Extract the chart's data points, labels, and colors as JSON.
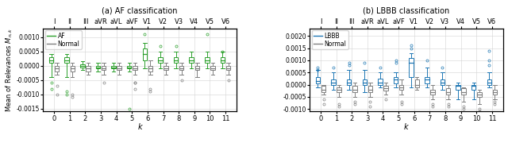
{
  "subplot_titles": [
    "(a) AF classification",
    "(b) LBBB classification"
  ],
  "ylabel": "Mean of Relevances $M_{n,k}$",
  "xlabel": "k",
  "top_labels": [
    "I",
    "II",
    "III",
    "aVR",
    "aVL",
    "aVF",
    "V1",
    "V2",
    "V3",
    "V4",
    "V5",
    "V6"
  ],
  "x_ticks": [
    0,
    1,
    2,
    3,
    4,
    5,
    6,
    7,
    8,
    9,
    10,
    11
  ],
  "af": {
    "color": "#2ca02c",
    "label": "AF",
    "ylim": [
      -0.0016,
      0.0013
    ],
    "yticks": [
      -0.0015,
      -0.001,
      -0.0005,
      0.0,
      0.0005,
      0.001
    ],
    "boxes": {
      "class": {
        "medians": [
          0.0002,
          0.0002,
          0.0,
          -5e-05,
          -5e-05,
          -5e-05,
          0.0004,
          0.0002,
          0.0002,
          0.0002,
          0.0002,
          0.0002
        ],
        "q1": [
          0.0001,
          0.0001,
          -5e-05,
          -0.0001,
          -0.0001,
          -0.0001,
          0.0002,
          0.0001,
          0.0001,
          0.0001,
          0.0001,
          0.0001
        ],
        "q3": [
          0.0003,
          0.0003,
          5e-05,
          0.0,
          0.0,
          0.0,
          0.0006,
          0.0003,
          0.0003,
          0.0003,
          0.0003,
          0.0003
        ],
        "whislo": [
          -0.0004,
          -0.0004,
          -0.00015,
          -0.0002,
          -0.0002,
          -0.0002,
          -0.0001,
          -0.0001,
          -0.0001,
          -0.0001,
          -0.0001,
          -0.0001
        ],
        "whishi": [
          0.0004,
          0.0004,
          0.00015,
          0.0001,
          0.0001,
          0.0001,
          0.0008,
          0.0005,
          0.0005,
          0.0005,
          0.0005,
          0.0005
        ],
        "fliers_y": [
          [
            -0.0008,
            -0.0006
          ],
          [
            -0.0009,
            -0.001
          ],
          [],
          [],
          [],
          [
            -0.0015
          ],
          [
            0.0011
          ],
          [
            0.0007
          ],
          [
            0.0007
          ],
          [],
          [
            0.0011
          ],
          [
            0.0005
          ]
        ]
      },
      "normal": {
        "medians": [
          -0.0001,
          -0.0001,
          -0.0001,
          -0.0001,
          -0.0001,
          -0.0001,
          -0.0001,
          -0.0001,
          -0.0001,
          -0.0001,
          -0.0001,
          -0.0001
        ],
        "q1": [
          -0.0002,
          -0.0002,
          -0.0002,
          -0.00015,
          -0.00015,
          -0.00015,
          -0.0002,
          -0.00015,
          -0.00015,
          -0.00015,
          -0.00015,
          -0.00015
        ],
        "q3": [
          0.0,
          0.0,
          0.0,
          0.0,
          0.0,
          0.0,
          0.0,
          0.0,
          0.0,
          0.0,
          0.0,
          0.0
        ],
        "whislo": [
          -0.0003,
          -0.0004,
          -0.0003,
          -0.0003,
          -0.0003,
          -0.0003,
          -0.0003,
          -0.0003,
          -0.0003,
          -0.0004,
          -0.0003,
          -0.0003
        ],
        "whishi": [
          0.0001,
          0.0001,
          0.0001,
          0.0001,
          0.0001,
          0.0001,
          0.0002,
          0.0001,
          0.0001,
          0.0001,
          0.0001,
          0.0001
        ],
        "fliers_y": [
          [
            -0.0007,
            -0.001
          ],
          [
            -0.001,
            -0.0011
          ],
          [],
          [
            -0.0006
          ],
          [],
          [
            -0.0006,
            -0.0006,
            -0.0008
          ],
          [
            -0.0008,
            -0.0009
          ],
          [],
          [
            -0.0005
          ],
          [],
          [],
          [
            -0.0005
          ]
        ]
      }
    }
  },
  "lbbb": {
    "color": "#1f77b4",
    "label": "LBBB",
    "ylim": [
      -0.0011,
      0.0023
    ],
    "yticks": [
      -0.001,
      -0.0005,
      0.0,
      0.0005,
      0.001,
      0.0015,
      0.002
    ],
    "boxes": {
      "class": {
        "medians": [
          0.00015,
          0.0001,
          0.0001,
          0.0001,
          0.0001,
          0.0002,
          0.0009,
          0.0002,
          0.0001,
          -5e-05,
          -5e-05,
          0.0001
        ],
        "q1": [
          5e-05,
          0.0,
          0.0,
          0.0,
          0.0,
          5e-05,
          0.0003,
          5e-05,
          0.0,
          -0.0002,
          -0.0002,
          0.0
        ],
        "q3": [
          0.0003,
          0.0002,
          0.0002,
          0.0002,
          0.00025,
          0.0003,
          0.0011,
          0.0003,
          0.0002,
          0.0,
          0.0,
          0.0002
        ],
        "whislo": [
          -0.0001,
          -0.0002,
          -0.0002,
          -0.0003,
          -0.0001,
          -0.0001,
          -0.0001,
          -0.0001,
          -0.0002,
          -0.0006,
          -0.0006,
          -0.0001
        ],
        "whishi": [
          0.0006,
          0.0005,
          0.0006,
          0.0006,
          0.0005,
          0.0005,
          0.0013,
          0.0007,
          0.0005,
          0.0001,
          0.0001,
          0.0005
        ],
        "fliers_y": [
          [
            0.0007,
            0.0006
          ],
          [
            0.0007
          ],
          [
            0.0008,
            0.0009
          ],
          [
            0.0009
          ],
          [
            0.0007
          ],
          [
            0.0009,
            0.001
          ],
          [
            0.0015,
            0.0016
          ],
          [
            0.001
          ],
          [
            0.0007
          ],
          [],
          [],
          [
            0.0008,
            0.001,
            0.0014
          ]
        ]
      },
      "normal": {
        "medians": [
          -0.0002,
          -0.0002,
          -0.0002,
          -0.0002,
          -0.00015,
          -0.0001,
          0.0,
          -0.0003,
          -0.0003,
          -0.0003,
          -0.0004,
          -0.0003
        ],
        "q1": [
          -0.0003,
          -0.0003,
          -0.0003,
          -0.0003,
          -0.00025,
          -0.0002,
          -0.0001,
          -0.0004,
          -0.0004,
          -0.0004,
          -0.0005,
          -0.0004
        ],
        "q3": [
          -5e-05,
          -0.0001,
          -5e-05,
          -5e-05,
          -5e-05,
          0.0,
          0.0002,
          -0.0002,
          -0.00015,
          -0.00015,
          -0.0003,
          -0.0002
        ],
        "whislo": [
          -0.0004,
          -0.0005,
          -0.0005,
          -0.0005,
          -0.0004,
          -0.0004,
          -0.0002,
          -0.0006,
          -0.0006,
          -0.0007,
          -0.0008,
          -0.0006
        ],
        "whishi": [
          0.0,
          0.0,
          0.0001,
          0.0001,
          0.0001,
          0.0002,
          0.0003,
          0.0,
          0.0,
          -0.0001,
          -0.0002,
          0.0
        ],
        "fliers_y": [
          [
            -0.0006,
            -0.0008
          ],
          [
            -0.0008,
            -0.0009
          ],
          [
            -0.0007,
            -0.0008
          ],
          [
            -0.0007,
            -0.0009
          ],
          [
            -0.0006
          ],
          [
            -0.0007,
            -0.0008
          ],
          [],
          [
            -0.0008,
            -0.0009
          ],
          [
            -0.0008,
            -0.0009
          ],
          [
            -0.0009,
            -0.001
          ],
          [
            -0.001,
            -0.0011
          ],
          [
            -0.0007,
            -0.0008
          ]
        ]
      }
    }
  }
}
